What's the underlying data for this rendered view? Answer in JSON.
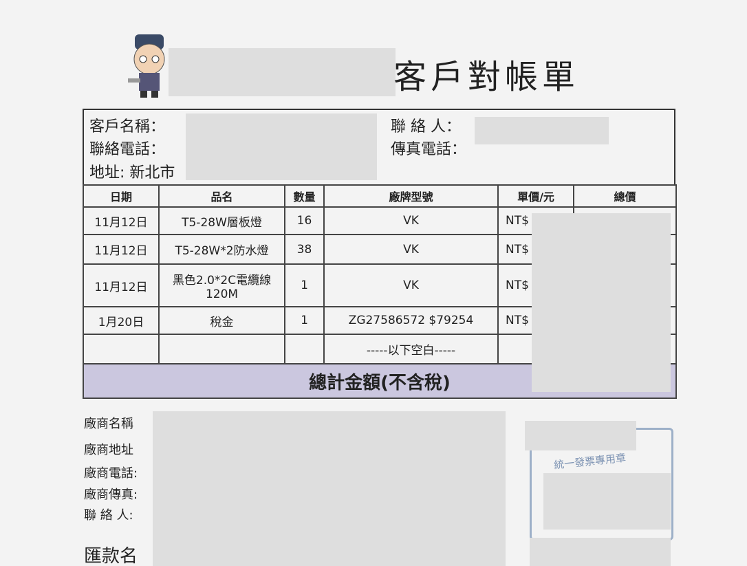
{
  "header": {
    "title": "客戶對帳單"
  },
  "customer": {
    "name_label": "客戶名稱：",
    "phone_label": "聯絡電話：",
    "address_label": "地址: 新北市",
    "contact_label": "聯 絡 人：",
    "fax_label": "傳真電話："
  },
  "table": {
    "columns": [
      "日期",
      "品名",
      "數量",
      "廠牌型號",
      "單價/元",
      "總價"
    ],
    "rows": [
      [
        "11月12日",
        [
          "T5-28W層板燈"
        ],
        16,
        "VK",
        "NT$"
      ],
      [
        "11月12日",
        [
          "T5-28W*2防水燈"
        ],
        38,
        "VK",
        "NT$"
      ],
      [
        "11月12日",
        [
          "黑色2.0*2C電纜線",
          "120M"
        ],
        1,
        "VK",
        "NT$"
      ],
      [
        "1月20日",
        [
          "稅金"
        ],
        1,
        "ZG27586572 $79254",
        "NT$"
      ],
      [
        null,
        null,
        null,
        "-----以下空白-----",
        null
      ]
    ],
    "total_label": "總計金額(不含稅)"
  },
  "vendor": {
    "labels": [
      "廠商名稱",
      "廠商地址",
      "廠商電話:",
      "廠商傳真:",
      "聯 絡 人:"
    ],
    "remittance_label": "匯款名"
  },
  "stamp": {
    "text": "統一發票專用章"
  }
}
